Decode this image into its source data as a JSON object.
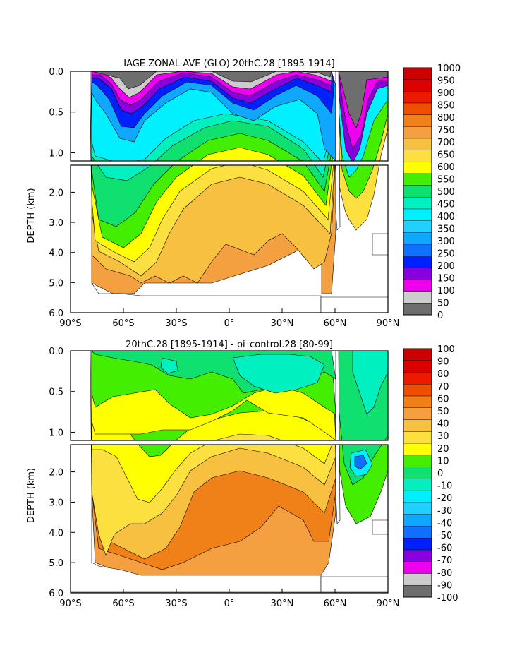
{
  "chart_data": [
    {
      "type": "heatmap",
      "title": "IAGE ZONAL-AVE (GLO) 20thC.28 [1895-1914]",
      "ylabel": "DEPTH (km)",
      "x_ticks": [
        "90°S",
        "60°S",
        "30°S",
        "0°",
        "30°N",
        "60°N",
        "90°N"
      ],
      "x_range": [
        -90,
        90
      ],
      "y_ticks_upper": [
        "0.0",
        "0.5",
        "1.0"
      ],
      "y_range_upper": [
        0.0,
        1.1
      ],
      "y_ticks_lower": [
        "2.0",
        "3.0",
        "4.0",
        "5.0",
        "6.0"
      ],
      "y_range_lower": [
        1.1,
        6.0
      ],
      "colorbar": {
        "labels": [
          "1000",
          "950",
          "900",
          "850",
          "800",
          "750",
          "700",
          "650",
          "600",
          "550",
          "500",
          "450",
          "400",
          "350",
          "300",
          "250",
          "200",
          "150",
          "100",
          "50",
          "0"
        ],
        "colors": [
          "#cc0000",
          "#dd0000",
          "#ee1a00",
          "#f04e00",
          "#f08018",
          "#f4a040",
          "#f8c040",
          "#fce040",
          "#ffff00",
          "#44ee00",
          "#10e070",
          "#00f0c0",
          "#00f0ff",
          "#20d0ff",
          "#10a8ff",
          "#1070ff",
          "#0020ff",
          "#8800dd",
          "#ee00ee",
          "#cccccc",
          "#6e6e6e"
        ]
      },
      "field_colors": {
        "surface": "#6e6e6e",
        "shallow": "#cccccc",
        "magenta": "#ee00ee",
        "purple": "#8800dd",
        "blue": "#0020ff",
        "cyan": "#00f0ff",
        "aqua": "#00f0c0",
        "green": "#10e070",
        "lime": "#44ee00",
        "yellow": "#ffff00",
        "gold": "#fce040",
        "orange": "#f8c040",
        "dark_orange": "#f4a040"
      }
    },
    {
      "type": "heatmap",
      "title": "20thC.28 [1895-1914] - pi_control.28 [80-99]",
      "ylabel": "DEPTH (km)",
      "x_ticks": [
        "90°S",
        "60°S",
        "30°S",
        "0°",
        "30°N",
        "60°N",
        "90°N"
      ],
      "x_range": [
        -90,
        90
      ],
      "y_ticks_upper": [
        "0.0",
        "0.5",
        "1.0"
      ],
      "y_range_upper": [
        0.0,
        1.1
      ],
      "y_ticks_lower": [
        "2.0",
        "3.0",
        "4.0",
        "5.0",
        "6.0"
      ],
      "y_range_lower": [
        1.1,
        6.0
      ],
      "colorbar": {
        "labels": [
          "100",
          "90",
          "80",
          "70",
          "60",
          "50",
          "40",
          "30",
          "20",
          "10",
          "0",
          "-10",
          "-20",
          "-30",
          "-40",
          "-50",
          "-60",
          "-70",
          "-80",
          "-90",
          "-100"
        ],
        "colors": [
          "#cc0000",
          "#dd0000",
          "#ee1a00",
          "#f04e00",
          "#f08018",
          "#f4a040",
          "#f8c040",
          "#fce040",
          "#ffff00",
          "#44ee00",
          "#10e070",
          "#00f0c0",
          "#00f0ff",
          "#20d0ff",
          "#10a8ff",
          "#1070ff",
          "#0020ff",
          "#8800dd",
          "#ee00ee",
          "#cccccc",
          "#6e6e6e"
        ]
      },
      "field_colors": {
        "green": "#44ee00",
        "light_green": "#10e070",
        "aqua": "#00f0c0",
        "cyan": "#00f0ff",
        "blue": "#1070ff",
        "yellow": "#ffff00",
        "gold": "#fce040",
        "orange": "#f8c040",
        "dark_orange": "#f4a040",
        "deep_orange": "#f08018"
      }
    }
  ]
}
